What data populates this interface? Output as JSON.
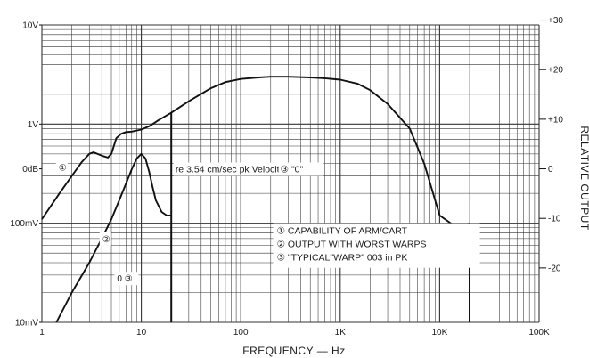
{
  "chart_data": {
    "type": "line",
    "title": "",
    "xlabel": "FREQUENCY — Hz",
    "ylabel_right": "RELATIVE OUTPUT",
    "x_scale": "log",
    "y_scale": "log",
    "xlim": [
      1,
      100000
    ],
    "ylim_left": [
      0.01,
      10
    ],
    "x_ticks": [
      {
        "value": 1,
        "label": "1"
      },
      {
        "value": 10,
        "label": "10"
      },
      {
        "value": 100,
        "label": "100"
      },
      {
        "value": 1000,
        "label": "1K"
      },
      {
        "value": 10000,
        "label": "10K"
      },
      {
        "value": 100000,
        "label": "100K"
      }
    ],
    "y_ticks_left": [
      {
        "value": 10,
        "label": "10V"
      },
      {
        "value": 1,
        "label": "1V"
      },
      {
        "value": 0.354,
        "label": "0dB"
      },
      {
        "value": 0.1,
        "label": "100mV"
      },
      {
        "value": 0.01,
        "label": "10mV"
      }
    ],
    "y_ticks_right": [
      {
        "value": 30,
        "label": "+30"
      },
      {
        "value": 20,
        "label": "+20"
      },
      {
        "value": 10,
        "label": "+10"
      },
      {
        "value": 0,
        "label": "0"
      },
      {
        "value": -10,
        "label": "-10"
      },
      {
        "value": -20,
        "label": "-20"
      }
    ],
    "right_axis_reference_volts": 0.354,
    "grid": true,
    "series": [
      {
        "id": "1",
        "x": [
          1,
          1.5,
          2,
          2.5,
          3,
          3.3,
          4,
          4.6,
          5,
          5.6,
          6.3,
          7,
          8,
          10,
          12,
          15,
          20,
          30,
          50,
          70,
          100,
          150,
          200,
          300,
          500,
          700,
          1000,
          1500,
          2000,
          3000,
          5000,
          7000,
          10000,
          15000,
          20000
        ],
        "y": [
          0.11,
          0.2,
          0.3,
          0.41,
          0.5,
          0.52,
          0.48,
          0.46,
          0.5,
          0.72,
          0.8,
          0.83,
          0.84,
          0.88,
          0.95,
          1.1,
          1.3,
          1.7,
          2.3,
          2.65,
          2.85,
          2.95,
          3.0,
          3.0,
          2.95,
          2.9,
          2.8,
          2.55,
          2.2,
          1.6,
          0.9,
          0.4,
          0.12,
          0.09,
          0.1
        ]
      },
      {
        "id": "2",
        "x": [
          1.4,
          2,
          3,
          4,
          5,
          6,
          7,
          8,
          9,
          10,
          11,
          12,
          13,
          14,
          16,
          18,
          20
        ],
        "y": [
          0.01,
          0.02,
          0.04,
          0.07,
          0.11,
          0.17,
          0.25,
          0.35,
          0.45,
          0.5,
          0.45,
          0.33,
          0.23,
          0.17,
          0.13,
          0.12,
          0.12
        ]
      }
    ],
    "vertical_lines": [
      {
        "x": 20,
        "y_from": 0.01,
        "y_to": 1.3
      },
      {
        "x": 20000,
        "y_from": 0.01,
        "y_to": 0.1
      }
    ],
    "annotations": [
      {
        "text": "re 3.54 cm/sec pk Velocity/ch",
        "x": 22,
        "y": 0.354
      },
      {
        "text": "③ \"0\"",
        "x": 250,
        "y": 0.354
      }
    ],
    "series_markers": [
      {
        "text": "①",
        "x": 1.6,
        "y": 0.37
      },
      {
        "text": "②",
        "x": 4.4,
        "y": 0.07
      },
      {
        "text": "0 ③",
        "x": 6.2,
        "y": 0.028
      }
    ],
    "legend": {
      "placement": "center",
      "entries": [
        "① CAPABILITY OF ARM/CART",
        "② OUTPUT WITH WORST WARPS",
        "③ \"TYPICAL\"WARP\" 003 in PK"
      ]
    }
  }
}
